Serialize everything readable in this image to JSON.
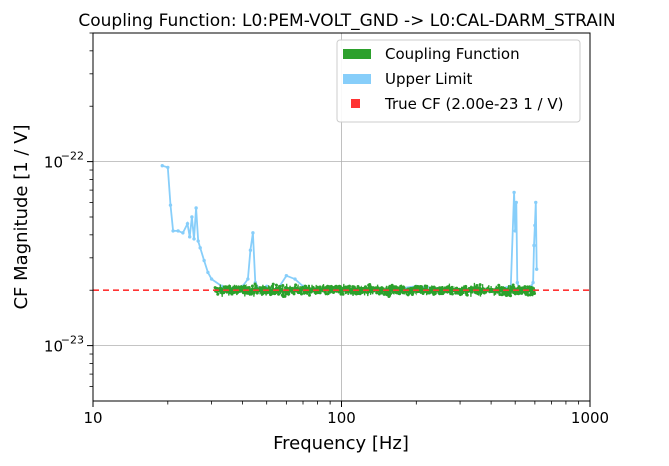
{
  "chart_data": {
    "type": "scatter",
    "title": "Coupling Function: L0:PEM-VOLT_GND -> L0:CAL-DARM_STRAIN",
    "xlabel": "Frequency [Hz]",
    "ylabel": "CF Magnitude [1 / V]",
    "xscale": "log",
    "yscale": "log",
    "xlim": [
      10,
      1000
    ],
    "ylim": [
      5e-24,
      5e-22
    ],
    "grid": true,
    "legend_position": "top-right",
    "x_ticks": [
      {
        "value": 10,
        "label": "10"
      },
      {
        "value": 100,
        "label": "100"
      },
      {
        "value": 1000,
        "label": "1000"
      }
    ],
    "y_ticks": [
      {
        "value": 1e-23,
        "base": "10",
        "exp": "−23"
      },
      {
        "value": 1e-22,
        "base": "10",
        "exp": "−22"
      }
    ],
    "colors": {
      "coupling": "#2ca02c",
      "upper": "#87cefa",
      "true_cf": "#ff3333"
    },
    "true_cf_value": 2e-23,
    "series": [
      {
        "name": "Coupling Function",
        "key": "coupling",
        "x_range": [
          31,
          600
        ],
        "y_center": 2e-23,
        "y_spread": 0.06,
        "y_min": 1.75e-23,
        "y_max": 2.35e-23
      },
      {
        "name": "Upper Limit",
        "key": "upper",
        "x": [
          19,
          20,
          20.5,
          21,
          22,
          23,
          24,
          24.5,
          25,
          25.5,
          26,
          26.5,
          27,
          28,
          29,
          30,
          33,
          37,
          40,
          42,
          43,
          44,
          45,
          47,
          50,
          55,
          60,
          65,
          70,
          80,
          90,
          100,
          150,
          200,
          300,
          400,
          480,
          495,
          500,
          505,
          510,
          520,
          560,
          580,
          590,
          595,
          600,
          605,
          610
        ],
        "y": [
          9.5e-23,
          9.3e-23,
          5.8e-23,
          4.2e-23,
          4.2e-23,
          4.1e-23,
          4.6e-23,
          3.9e-23,
          5e-23,
          3.8e-23,
          5.6e-23,
          3.7e-23,
          3.4e-23,
          2.9e-23,
          2.5e-23,
          2.3e-23,
          2.1e-23,
          2.05e-23,
          2.1e-23,
          2.3e-23,
          3.3e-23,
          4.1e-23,
          2.2e-23,
          2e-23,
          2.1e-23,
          2e-23,
          2.4e-23,
          2.3e-23,
          2.1e-23,
          2e-23,
          2.05e-23,
          2e-23,
          2e-23,
          2.1e-23,
          2e-23,
          2e-23,
          2.1e-23,
          6.8e-23,
          4.2e-23,
          6e-23,
          2.2e-23,
          2e-23,
          2.05e-23,
          2.1e-23,
          2.2e-23,
          3.5e-23,
          4.5e-23,
          6e-23,
          2.6e-23
        ]
      },
      {
        "name": "True CF (2.00e-23 1 / V)",
        "key": "true_cf"
      }
    ]
  }
}
